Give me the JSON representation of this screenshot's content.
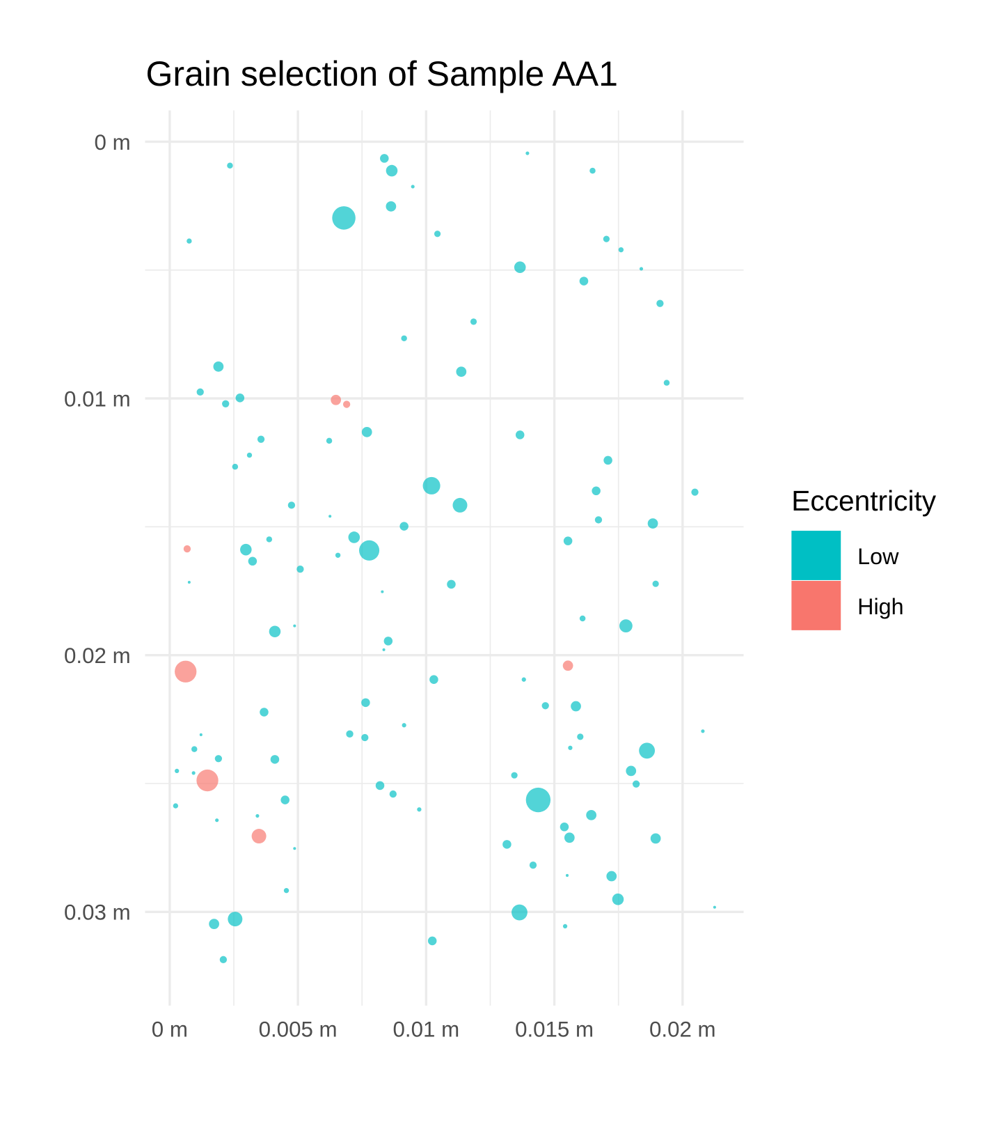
{
  "chart_data": {
    "type": "scatter",
    "title": "Grain selection of Sample AA1",
    "legend_title": "Eccentricity",
    "legend": "right",
    "grid": true,
    "y_reversed": true,
    "xlim": [
      -0.00096,
      0.02238
    ],
    "ylim": [
      -0.00122,
      0.03365
    ],
    "xticks": [
      {
        "value": 0,
        "label": "0 m"
      },
      {
        "value": 0.005,
        "label": "0.005 m"
      },
      {
        "value": 0.01,
        "label": "0.01 m"
      },
      {
        "value": 0.015,
        "label": "0.015 m"
      },
      {
        "value": 0.02,
        "label": "0.02 m"
      }
    ],
    "yticks": [
      {
        "value": 0,
        "label": "0 m"
      },
      {
        "value": 0.01,
        "label": "0.01 m"
      },
      {
        "value": 0.02,
        "label": "0.02 m"
      },
      {
        "value": 0.03,
        "label": "0.03 m"
      }
    ],
    "series": [
      {
        "name": "Low",
        "color": "#00BFC4",
        "x": [
          0.00235,
          0.00837,
          0.00866,
          0.00948,
          0.00863,
          0.01395,
          0.01649,
          0.00076,
          0.00679,
          0.01044,
          0.01703,
          0.0176,
          0.01839,
          0.01366,
          0.01615,
          0.01912,
          0.01185,
          0.00914,
          0.0019,
          0.01137,
          0.01938,
          0.00119,
          0.00218,
          0.00274,
          0.00356,
          0.00769,
          0.00622,
          0.01366,
          0.00311,
          0.01709,
          0.00255,
          0.01021,
          0.01132,
          0.01663,
          0.02048,
          0.00475,
          0.00625,
          0.00914,
          0.01672,
          0.01884,
          0.00719,
          0.00388,
          0.00778,
          0.00297,
          0.01553,
          0.00323,
          0.00656,
          0.00509,
          0.01098,
          0.01895,
          0.00076,
          0.00829,
          0.0041,
          0.00487,
          0.0161,
          0.01779,
          0.00852,
          0.00835,
          0.0103,
          0.01381,
          0.00764,
          0.01465,
          0.01584,
          0.00368,
          0.00914,
          0.02079,
          0.00702,
          0.00761,
          0.01601,
          0.01861,
          0.00122,
          0.00096,
          0.01562,
          0.0041,
          0.0019,
          0.00028,
          0.00093,
          0.01799,
          0.01344,
          0.01819,
          0.0082,
          0.00871,
          0.0045,
          0.01437,
          0.00973,
          0.00023,
          0.01644,
          0.00184,
          0.00342,
          0.01539,
          0.01559,
          0.01895,
          0.01315,
          0.00487,
          0.01417,
          0.01723,
          0.0155,
          0.00455,
          0.01748,
          0.01364,
          0.00255,
          0.00173,
          0.01542,
          0.02125,
          0.01024,
          0.00209
        ],
        "values": [
          0.00093,
          0.00065,
          0.00113,
          0.00175,
          0.00252,
          0.00045,
          0.00113,
          0.00387,
          0.00297,
          0.00359,
          0.00379,
          0.00421,
          0.00495,
          0.00489,
          0.00543,
          0.0063,
          0.00701,
          0.00766,
          0.00876,
          0.00896,
          0.00939,
          0.00975,
          0.01021,
          0.00998,
          0.01159,
          0.01131,
          0.01165,
          0.01142,
          0.01221,
          0.01241,
          0.01266,
          0.0134,
          0.01416,
          0.0136,
          0.01365,
          0.01416,
          0.01459,
          0.01498,
          0.01473,
          0.01487,
          0.01541,
          0.01549,
          0.01592,
          0.01589,
          0.01555,
          0.01634,
          0.01611,
          0.01665,
          0.01724,
          0.01722,
          0.01716,
          0.01753,
          0.01908,
          0.01886,
          0.01857,
          0.01886,
          0.01945,
          0.01979,
          0.02095,
          0.02095,
          0.02185,
          0.02197,
          0.02199,
          0.02222,
          0.02273,
          0.02296,
          0.02307,
          0.02321,
          0.02318,
          0.02372,
          0.0231,
          0.02366,
          0.02361,
          0.02406,
          0.02403,
          0.02451,
          0.02459,
          0.02451,
          0.02468,
          0.02502,
          0.02508,
          0.02541,
          0.02564,
          0.02564,
          0.02601,
          0.02587,
          0.02623,
          0.02643,
          0.02626,
          0.02669,
          0.02711,
          0.02714,
          0.02737,
          0.02753,
          0.02818,
          0.02861,
          0.02858,
          0.02917,
          0.02951,
          0.03002,
          0.03028,
          0.03047,
          0.03056,
          0.02982,
          0.03113,
          0.03186
        ],
        "sizes": [
          0.00023,
          0.00034,
          0.00045,
          0.00014,
          0.0004,
          0.00014,
          0.00023,
          0.0002,
          0.00091,
          0.00025,
          0.00025,
          0.0002,
          0.00014,
          0.00045,
          0.00034,
          0.00028,
          0.00025,
          0.00023,
          0.0004,
          0.0004,
          0.00023,
          0.00028,
          0.00028,
          0.00034,
          0.00028,
          0.0004,
          0.00023,
          0.00034,
          0.0002,
          0.00034,
          0.00023,
          0.00068,
          0.00057,
          0.00034,
          0.00028,
          0.00028,
          0.00011,
          0.00034,
          0.00028,
          0.0004,
          0.00045,
          0.00023,
          0.00079,
          0.00045,
          0.00034,
          0.00034,
          0.0002,
          0.00028,
          0.00034,
          0.00025,
          0.00011,
          0.00011,
          0.00045,
          0.00011,
          0.00023,
          0.00051,
          0.00034,
          0.00011,
          0.00034,
          0.00017,
          0.00034,
          0.00028,
          0.0004,
          0.00034,
          0.00017,
          0.00014,
          0.00028,
          0.00028,
          0.00025,
          0.00062,
          0.00011,
          0.00023,
          0.00017,
          0.00034,
          0.00028,
          0.00017,
          0.00014,
          0.0004,
          0.00025,
          0.00028,
          0.00034,
          0.00028,
          0.00034,
          0.00096,
          0.00017,
          0.0002,
          0.0004,
          0.00014,
          0.00014,
          0.00034,
          0.0004,
          0.0004,
          0.00034,
          0.00011,
          0.00028,
          0.0004,
          0.00011,
          0.0002,
          0.00045,
          0.00062,
          0.00057,
          0.0004,
          0.00017,
          0.00011,
          0.00034,
          0.00028
        ]
      },
      {
        "name": "High",
        "color": "#F8766D",
        "x": [
          0.00648,
          0.0069,
          0.00068,
          0.00062,
          0.01553,
          0.00147,
          0.00348
        ],
        "values": [
          0.01006,
          0.01023,
          0.01586,
          0.02064,
          0.02041,
          0.02488,
          0.02705
        ],
        "sizes": [
          0.0004,
          0.00028,
          0.00028,
          0.00085,
          0.0004,
          0.00085,
          0.00057
        ]
      }
    ]
  }
}
